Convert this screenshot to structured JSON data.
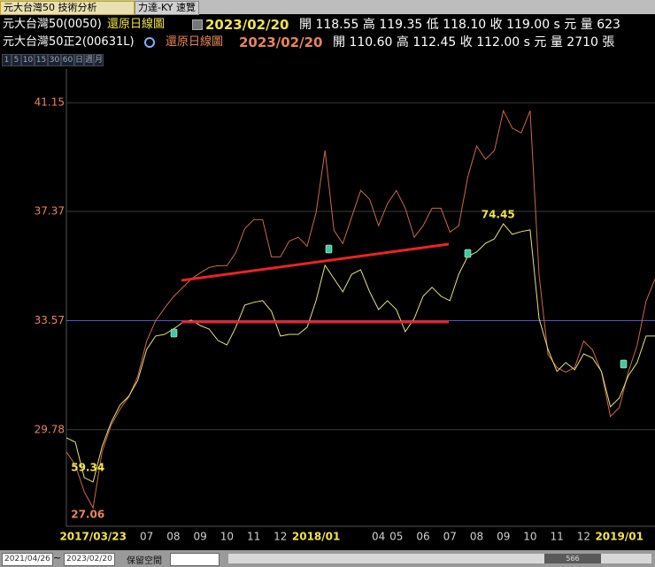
{
  "tabs": [
    "元大台灣50 技術分析",
    "力達-KY 速覽"
  ],
  "quote_rows": [
    {
      "mode": "還原日線圖",
      "date": "2023/02/20",
      "quote": "開 118.55 高 119.35 低 118.10 收 119.00 s 元 量 623"
    },
    {
      "mode": "還原日線圖",
      "date": "2023/02/20",
      "quote": "開 110.60 高 112.45 收 112.00 s 元 量 2710 張"
    }
  ],
  "periods": [
    "1",
    "5",
    "10",
    "15",
    "30",
    "60",
    "日",
    "週",
    "月"
  ],
  "range_start": "2021/04/26",
  "range_sep": "~",
  "range_end": "2023/02/20",
  "reserve_label": "保留空間",
  "scroll_value": "566",
  "chart_data": {
    "type": "line",
    "categories": [
      null,
      null,
      null,
      "2017/03/23",
      null,
      null,
      null,
      null,
      null,
      "07",
      null,
      null,
      "08",
      null,
      null,
      "09",
      null,
      null,
      "10",
      null,
      null,
      "11",
      null,
      null,
      "12",
      null,
      null,
      null,
      "2018/01",
      null,
      null,
      null,
      null,
      null,
      null,
      "04",
      null,
      "05",
      null,
      null,
      "06",
      null,
      null,
      "07",
      null,
      null,
      "08",
      null,
      null,
      "09",
      null,
      null,
      "10",
      null,
      null,
      "11",
      null,
      null,
      "12",
      null,
      null,
      null,
      "2019/01",
      null,
      null,
      null,
      null
    ],
    "series": [
      {
        "name": "元大台灣50正2(00631L)",
        "color": "#c86a46",
        "values": [
          29.01,
          28.55,
          27.62,
          27.06,
          29.01,
          29.93,
          30.49,
          30.92,
          31.63,
          32.86,
          33.57,
          34.0,
          34.4,
          34.71,
          35.02,
          35.23,
          35.42,
          35.48,
          35.48,
          35.94,
          36.77,
          37.08,
          37.08,
          35.79,
          35.79,
          36.34,
          36.47,
          36.16,
          37.33,
          39.49,
          36.71,
          36.25,
          37.18,
          38.1,
          37.79,
          36.87,
          37.64,
          38.1,
          37.48,
          36.47,
          36.87,
          37.48,
          37.48,
          36.65,
          36.87,
          38.56,
          39.64,
          39.18,
          39.49,
          40.87,
          40.26,
          40.1,
          40.87,
          35.17,
          32.4,
          31.94,
          31.78,
          31.94,
          32.86,
          32.55,
          31.78,
          30.24,
          30.55,
          31.78,
          32.71,
          34.25,
          35.02
        ]
      },
      {
        "name": "元大台灣50(0050)",
        "color": "#e6e27a",
        "axis": "y2",
        "values": [
          61.93,
          61.67,
          59.6,
          59.34,
          61.41,
          62.81,
          63.84,
          64.36,
          65.29,
          67.1,
          67.88,
          67.98,
          68.29,
          68.66,
          68.81,
          68.5,
          68.29,
          67.62,
          67.36,
          68.4,
          69.69,
          69.85,
          69.95,
          69.33,
          67.88,
          67.98,
          67.98,
          68.4,
          69.95,
          72.02,
          71.24,
          70.47,
          71.5,
          71.76,
          70.47,
          69.43,
          69.95,
          69.43,
          68.14,
          68.91,
          70.21,
          70.73,
          70.21,
          69.95,
          71.5,
          72.54,
          72.8,
          73.31,
          73.57,
          74.45,
          73.83,
          73.99,
          74.09,
          68.91,
          67.1,
          65.81,
          66.33,
          65.91,
          66.84,
          66.59,
          65.81,
          63.74,
          64.26,
          65.55,
          66.33,
          67.88,
          67.88
        ]
      }
    ],
    "ylim": [
      26.42,
      42.26
    ],
    "yticks": [
      41.15,
      37.37,
      33.57,
      29.78
    ],
    "y2lim": [
      56.75,
      83.4
    ],
    "grid": true,
    "reference_line": {
      "value": 33.57,
      "color": "#5656c8"
    }
  }
}
